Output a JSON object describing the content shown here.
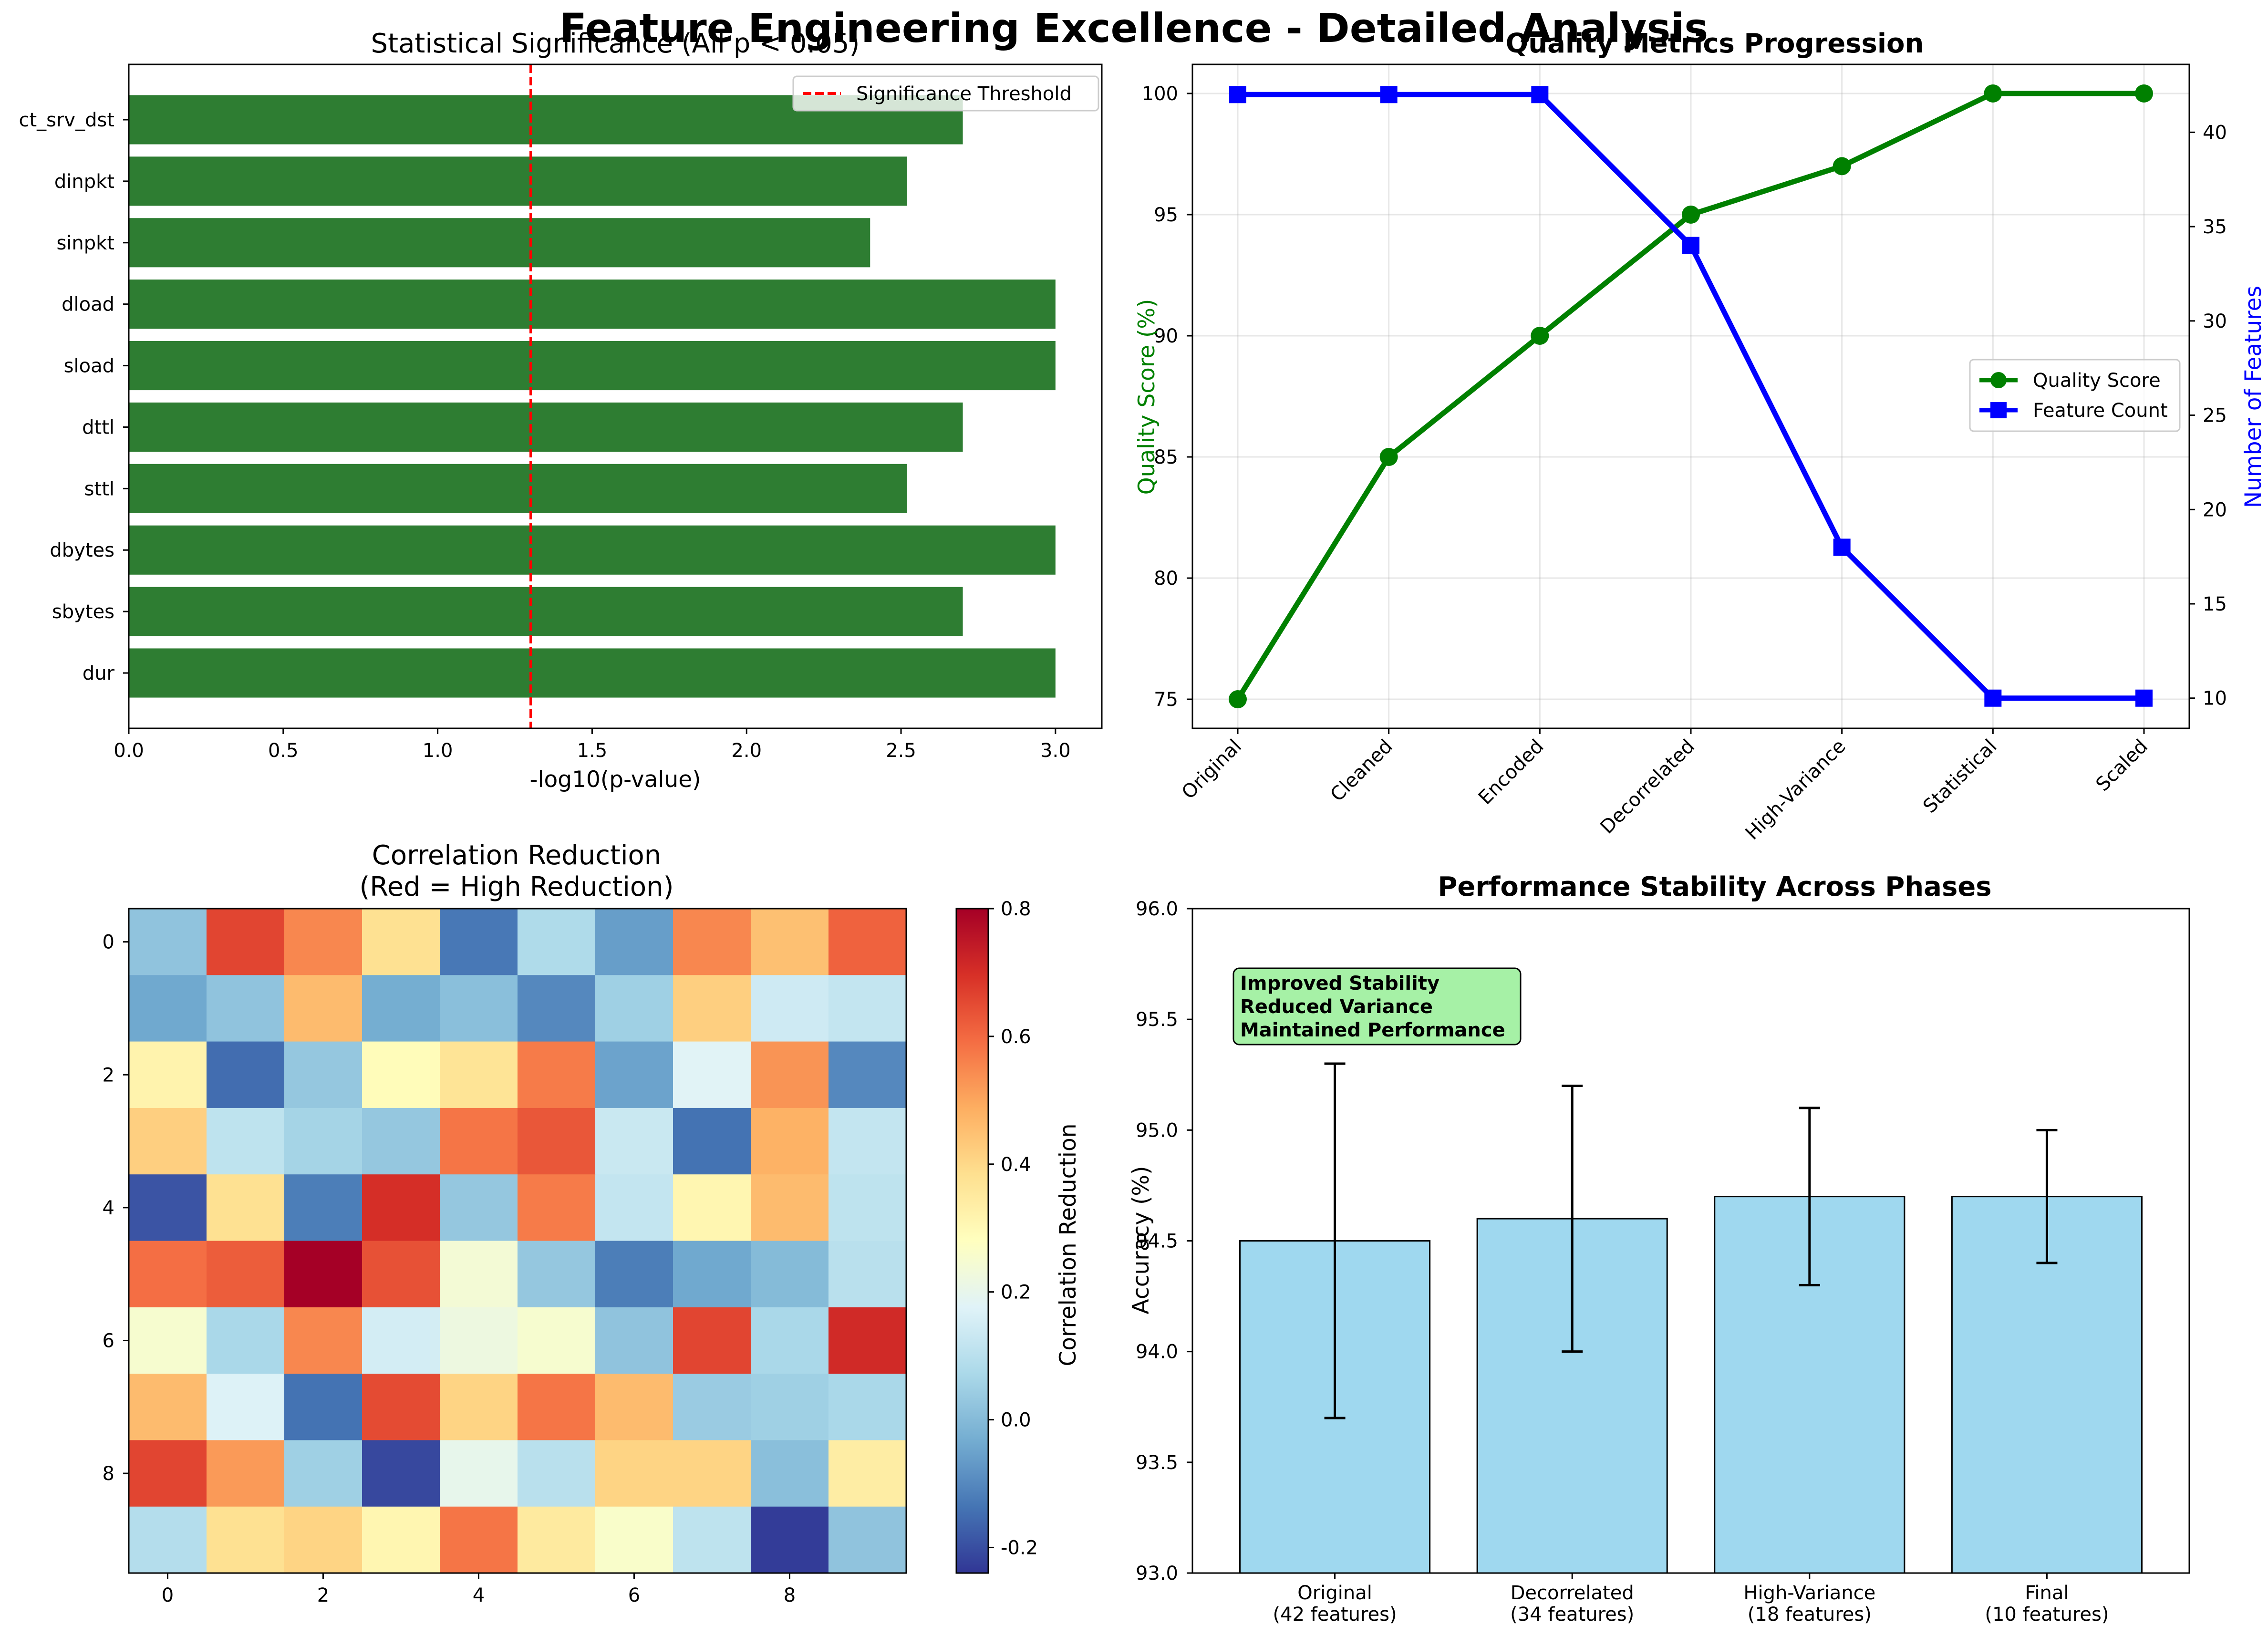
{
  "suptitle": "Feature Engineering Excellence - Detailed Analysis",
  "chart_data": [
    {
      "type": "bar",
      "orientation": "horizontal",
      "title": "Statistical Significance (All p < 0.05)",
      "xlabel": "-log10(p-value)",
      "ylabel": "",
      "categories": [
        "dur",
        "sbytes",
        "dbytes",
        "sttl",
        "dttl",
        "sload",
        "dload",
        "sinpkt",
        "dinpkt",
        "ct_srv_dst"
      ],
      "values": [
        3.0,
        2.7,
        3.0,
        2.52,
        2.7,
        3.0,
        3.0,
        2.4,
        2.52,
        2.7
      ],
      "xlim": [
        0,
        3.15
      ],
      "xticks": [
        "0.0",
        "0.5",
        "1.0",
        "1.5",
        "2.0",
        "2.5",
        "3.0"
      ],
      "bar_color": "#2e7d32",
      "threshold": {
        "value": 1.301,
        "label": "Significance Threshold",
        "color": "#ff0000"
      },
      "legend": "top-right",
      "grid": false
    },
    {
      "type": "line",
      "title": "Quality Metrics Progression",
      "categories": [
        "Original",
        "Cleaned",
        "Encoded",
        "Decorrelated",
        "High-Variance",
        "Statistical",
        "Scaled"
      ],
      "ylabel_left": "Quality Score (%)",
      "ylabel_right": "Number of Features",
      "ylim_left": [
        73.8,
        101.2
      ],
      "ylim_right": [
        8.4,
        43.6
      ],
      "yticks_left": [
        "75",
        "80",
        "85",
        "90",
        "95",
        "100"
      ],
      "yticks_right": [
        "10",
        "15",
        "20",
        "25",
        "30",
        "35",
        "40"
      ],
      "series": [
        {
          "name": "Quality Score",
          "axis": "left",
          "color": "#008000",
          "marker": "circle",
          "values": [
            75,
            85,
            90,
            95,
            97,
            100,
            100
          ]
        },
        {
          "name": "Feature Count",
          "axis": "right",
          "color": "#0000ff",
          "marker": "square",
          "values": [
            42,
            42,
            42,
            34,
            18,
            10,
            10
          ]
        }
      ],
      "legend": "center-right",
      "grid": true
    },
    {
      "type": "heatmap",
      "title_line1": "Correlation Reduction",
      "title_line2": "(Red = High Reduction)",
      "colorbar_label": "Correlation Reduction",
      "colormap": "RdYlBu_r",
      "vmin": -0.24,
      "vmax": 0.8,
      "xticks": [
        "0",
        "2",
        "4",
        "6",
        "8"
      ],
      "yticks": [
        "0",
        "2",
        "4",
        "6",
        "8"
      ],
      "colorbar_ticks": [
        "-0.2",
        "0.0",
        "0.2",
        "0.4",
        "0.6",
        "0.8"
      ],
      "values": [
        [
          0.02,
          0.66,
          0.55,
          0.38,
          -0.13,
          0.08,
          -0.06,
          0.55,
          0.45,
          0.61
        ],
        [
          -0.04,
          0.02,
          0.46,
          -0.03,
          0.01,
          -0.1,
          0.05,
          0.42,
          0.14,
          0.12
        ],
        [
          0.32,
          -0.15,
          0.03,
          0.29,
          0.37,
          0.57,
          -0.05,
          0.18,
          0.53,
          -0.1
        ],
        [
          0.42,
          0.11,
          0.06,
          0.03,
          0.58,
          0.63,
          0.13,
          -0.14,
          0.48,
          0.12
        ],
        [
          -0.19,
          0.38,
          -0.12,
          0.7,
          0.03,
          0.57,
          0.12,
          0.31,
          0.46,
          0.11
        ],
        [
          0.59,
          0.62,
          0.8,
          0.64,
          0.24,
          0.03,
          -0.12,
          -0.04,
          0.0,
          0.1
        ],
        [
          0.25,
          0.07,
          0.55,
          0.15,
          0.22,
          0.25,
          0.02,
          0.66,
          0.07,
          0.71
        ],
        [
          0.46,
          0.17,
          -0.14,
          0.65,
          0.41,
          0.58,
          0.46,
          0.04,
          0.05,
          0.07
        ],
        [
          0.66,
          0.52,
          0.05,
          -0.21,
          0.2,
          0.1,
          0.41,
          0.41,
          0.01,
          0.34
        ],
        [
          0.09,
          0.38,
          0.41,
          0.31,
          0.58,
          0.35,
          0.26,
          0.11,
          -0.23,
          0.02
        ]
      ]
    },
    {
      "type": "bar",
      "title": "Performance Stability Across Phases",
      "ylabel": "Accuracy (%)",
      "ylim": [
        93.0,
        96.0
      ],
      "yticks": [
        "93.0",
        "93.5",
        "94.0",
        "94.5",
        "95.0",
        "95.5",
        "96.0"
      ],
      "categories": [
        [
          "Original",
          "(42 features)"
        ],
        [
          "Decorrelated",
          "(34 features)"
        ],
        [
          "High-Variance",
          "(18 features)"
        ],
        [
          "Final",
          "(10 features)"
        ]
      ],
      "values": [
        94.5,
        94.6,
        94.7,
        94.7
      ],
      "errors": [
        0.8,
        0.6,
        0.4,
        0.3
      ],
      "bar_color": "#87ceeb",
      "annotation": [
        "Improved Stability",
        "Reduced Variance",
        "Maintained Performance"
      ],
      "annotation_bg": "#90ee90",
      "grid": false
    }
  ]
}
